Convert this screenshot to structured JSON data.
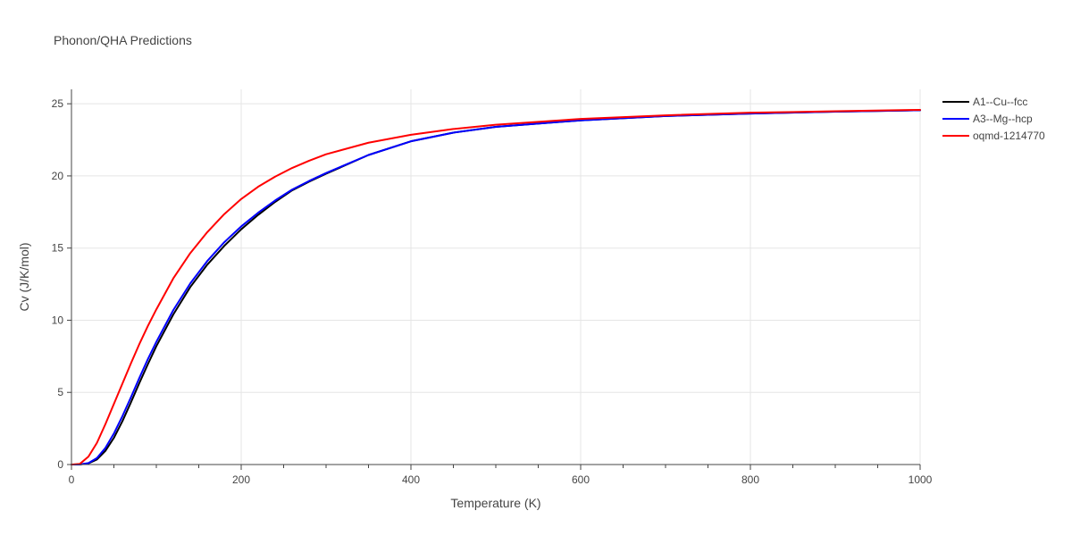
{
  "chart_data": {
    "type": "line",
    "title": "Phonon/QHA Predictions",
    "xlabel": "Temperature (K)",
    "ylabel": "Cv (J/K/mol)",
    "xlim": [
      0,
      1000
    ],
    "ylim": [
      0,
      26
    ],
    "xticks": [
      0,
      200,
      400,
      600,
      800,
      1000
    ],
    "xtick_labels": [
      "0",
      "200",
      "400",
      "600",
      "800",
      "1000"
    ],
    "yticks": [
      0,
      5,
      10,
      15,
      20,
      25
    ],
    "ytick_labels": [
      "0",
      "5",
      "10",
      "15",
      "20",
      "25"
    ],
    "grid": true,
    "legend_position": "top-right",
    "series": [
      {
        "name": "A1--Cu--fcc",
        "color": "#000000",
        "x": [
          0,
          10,
          20,
          30,
          40,
          50,
          60,
          70,
          80,
          90,
          100,
          120,
          140,
          160,
          180,
          200,
          220,
          240,
          260,
          280,
          300,
          350,
          400,
          450,
          500,
          600,
          700,
          800,
          900,
          1000
        ],
        "y": [
          0,
          0.01,
          0.08,
          0.35,
          0.95,
          1.85,
          3.0,
          4.3,
          5.65,
          6.95,
          8.2,
          10.4,
          12.3,
          13.85,
          15.15,
          16.3,
          17.3,
          18.2,
          19.0,
          19.6,
          20.15,
          21.45,
          22.4,
          23.0,
          23.4,
          23.85,
          24.15,
          24.32,
          24.45,
          24.55
        ]
      },
      {
        "name": "A3--Mg--hcp",
        "color": "#0000ff",
        "x": [
          0,
          10,
          20,
          30,
          40,
          50,
          60,
          70,
          80,
          90,
          100,
          120,
          140,
          160,
          180,
          200,
          220,
          240,
          260,
          280,
          300,
          350,
          400,
          450,
          500,
          600,
          700,
          800,
          900,
          1000
        ],
        "y": [
          0,
          0.01,
          0.1,
          0.45,
          1.15,
          2.15,
          3.35,
          4.65,
          6.0,
          7.3,
          8.5,
          10.7,
          12.55,
          14.1,
          15.4,
          16.5,
          17.45,
          18.3,
          19.05,
          19.65,
          20.2,
          21.45,
          22.4,
          23.0,
          23.4,
          23.85,
          24.15,
          24.32,
          24.45,
          24.55
        ]
      },
      {
        "name": "oqmd-1214770",
        "color": "#ff0000",
        "x": [
          0,
          10,
          20,
          30,
          40,
          50,
          60,
          70,
          80,
          90,
          100,
          120,
          140,
          160,
          180,
          200,
          220,
          240,
          260,
          280,
          300,
          350,
          400,
          450,
          500,
          600,
          700,
          800,
          900,
          1000
        ],
        "y": [
          0,
          0.05,
          0.55,
          1.5,
          2.8,
          4.2,
          5.6,
          7.0,
          8.35,
          9.6,
          10.75,
          12.9,
          14.65,
          16.1,
          17.35,
          18.4,
          19.25,
          19.95,
          20.55,
          21.05,
          21.5,
          22.3,
          22.85,
          23.25,
          23.55,
          23.95,
          24.2,
          24.38,
          24.48,
          24.58
        ]
      }
    ]
  }
}
